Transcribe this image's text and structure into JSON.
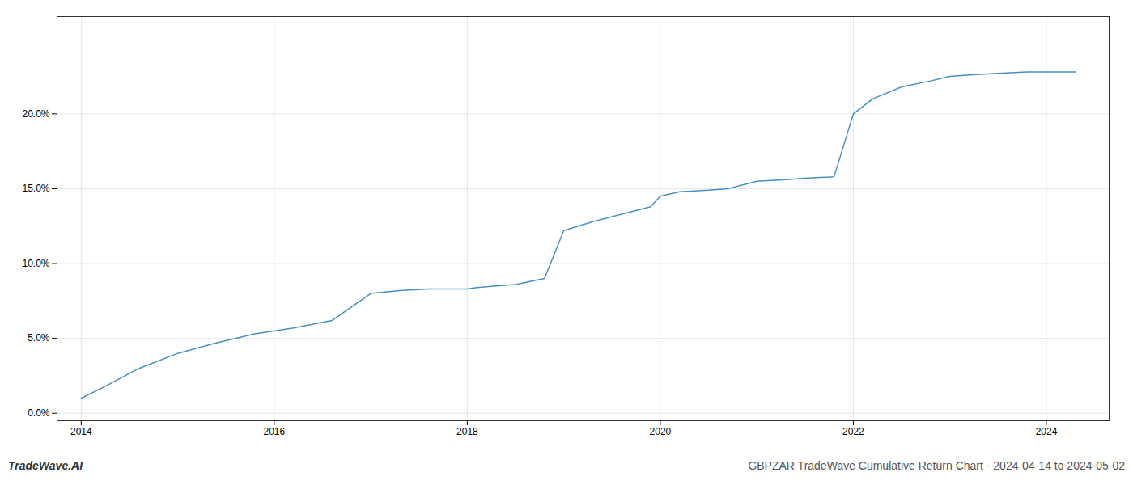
{
  "chart_data": {
    "type": "line",
    "title": "GBPZAR TradeWave Cumulative Return Chart - 2024-04-14 to 2024-05-02",
    "annotations": [
      "TradeWave.AI"
    ],
    "x": [
      2014.0,
      2014.25,
      2014.6,
      2015.0,
      2015.4,
      2015.8,
      2016.2,
      2016.6,
      2017.0,
      2017.3,
      2017.6,
      2017.9,
      2018.0,
      2018.1,
      2018.3,
      2018.5,
      2018.8,
      2019.0,
      2019.3,
      2019.6,
      2019.9,
      2020.0,
      2020.2,
      2020.5,
      2020.7,
      2021.0,
      2021.3,
      2021.5,
      2021.8,
      2022.0,
      2022.2,
      2022.5,
      2022.8,
      2023.0,
      2023.2,
      2023.5,
      2023.8,
      2024.0,
      2024.3
    ],
    "values": [
      0.01,
      0.018,
      0.03,
      0.04,
      0.047,
      0.053,
      0.057,
      0.062,
      0.08,
      0.082,
      0.083,
      0.083,
      0.083,
      0.084,
      0.085,
      0.086,
      0.09,
      0.122,
      0.128,
      0.133,
      0.138,
      0.145,
      0.148,
      0.149,
      0.15,
      0.155,
      0.156,
      0.157,
      0.158,
      0.2,
      0.21,
      0.218,
      0.222,
      0.225,
      0.226,
      0.227,
      0.228,
      0.228,
      0.228
    ],
    "color": "#4a8fc2",
    "xlim": [
      2013.75,
      2024.65
    ],
    "ylim": [
      -0.005,
      0.265
    ],
    "xticks": [
      2014,
      2016,
      2018,
      2020,
      2022,
      2024
    ],
    "yticks": [
      {
        "value": 0.0,
        "label": "0.0%"
      },
      {
        "value": 0.05,
        "label": "5.0%"
      },
      {
        "value": 0.1,
        "label": "10.0%"
      },
      {
        "value": 0.15,
        "label": "15.0%"
      },
      {
        "value": 0.2,
        "label": "20.0%"
      }
    ],
    "grid": true
  }
}
